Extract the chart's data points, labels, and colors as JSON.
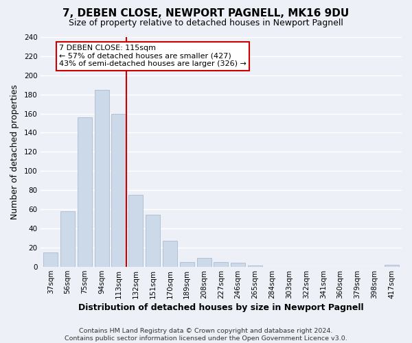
{
  "title": "7, DEBEN CLOSE, NEWPORT PAGNELL, MK16 9DU",
  "subtitle": "Size of property relative to detached houses in Newport Pagnell",
  "xlabel": "Distribution of detached houses by size in Newport Pagnell",
  "ylabel": "Number of detached properties",
  "bar_color": "#ccd9e8",
  "bar_edge_color": "#aabbd0",
  "bins": [
    "37sqm",
    "56sqm",
    "75sqm",
    "94sqm",
    "113sqm",
    "132sqm",
    "151sqm",
    "170sqm",
    "189sqm",
    "208sqm",
    "227sqm",
    "246sqm",
    "265sqm",
    "284sqm",
    "303sqm",
    "322sqm",
    "341sqm",
    "360sqm",
    "379sqm",
    "398sqm",
    "417sqm"
  ],
  "values": [
    15,
    58,
    156,
    185,
    160,
    75,
    54,
    27,
    5,
    9,
    5,
    4,
    1,
    0,
    0,
    0,
    0,
    0,
    0,
    0,
    2
  ],
  "marker_bin_index": 4,
  "marker_label": "7 DEBEN CLOSE: 115sqm",
  "annotation_line1": "← 57% of detached houses are smaller (427)",
  "annotation_line2": "43% of semi-detached houses are larger (326) →",
  "marker_color": "#cc0000",
  "ylim": [
    0,
    240
  ],
  "yticks": [
    0,
    20,
    40,
    60,
    80,
    100,
    120,
    140,
    160,
    180,
    200,
    220,
    240
  ],
  "footer1": "Contains HM Land Registry data © Crown copyright and database right 2024.",
  "footer2": "Contains public sector information licensed under the Open Government Licence v3.0.",
  "background_color": "#edf1f7",
  "grid_color": "#ffffff",
  "title_fontsize": 11,
  "subtitle_fontsize": 9,
  "axis_label_fontsize": 9,
  "tick_fontsize": 7.5,
  "footer_fontsize": 6.8
}
